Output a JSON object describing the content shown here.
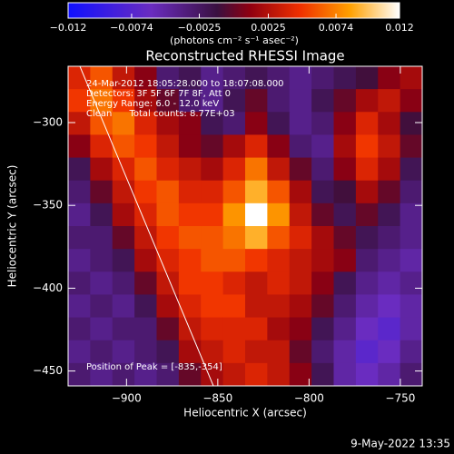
{
  "chart_data": {
    "type": "heatmap",
    "title": "Reconstructed RHESSI Image",
    "xlabel": "Heliocentric X (arcsec)",
    "ylabel": "Heliocentric Y (arcsec)",
    "xlim": [
      -932,
      -738
    ],
    "ylim": [
      -459,
      -266
    ],
    "xticks": [
      {
        "value": -900,
        "label": "−900"
      },
      {
        "value": -850,
        "label": "−850"
      },
      {
        "value": -800,
        "label": "−800"
      },
      {
        "value": -750,
        "label": "−750"
      }
    ],
    "yticks": [
      {
        "value": -300,
        "label": "−300"
      },
      {
        "value": -350,
        "label": "−350"
      },
      {
        "value": -400,
        "label": "−400"
      },
      {
        "value": -450,
        "label": "−450"
      }
    ],
    "clim": [
      -0.012,
      0.012
    ],
    "cticks": [
      {
        "value": -0.012,
        "label": "−0.012"
      },
      {
        "value": -0.0074,
        "label": "−0.0074"
      },
      {
        "value": -0.0025,
        "label": "−0.0025"
      },
      0.0025,
      0.0074,
      0.012
    ],
    "colorbar_label": "(photons cm⁻² s⁻¹ asec⁻²)",
    "colormap": [
      [
        0,
        "#1010ff"
      ],
      [
        0.25,
        "#6a2cc0"
      ],
      [
        0.45,
        "#3a1040"
      ],
      [
        0.55,
        "#900010"
      ],
      [
        0.7,
        "#f03000"
      ],
      [
        0.85,
        "#ffa000"
      ],
      [
        1,
        "#ffffff"
      ]
    ],
    "annotations": [
      "24-Mar-2012 18:05:28.000 to 18:07:08.000",
      "Detectors: 3F 5F 6F 7F 8F, Att 0",
      "Energy Range: 6.0 - 12.0 keV",
      "Clean      Total counts: 8.77E+03"
    ],
    "peak_label": "Position of Peak = [-835,-354]",
    "timestamp": "9-May-2022 13:35",
    "z": [
      [
        0.004,
        0.006,
        0.003,
        0.001,
        -0.003,
        -0.002,
        -0.004,
        -0.003,
        -0.002,
        -0.003,
        -0.004,
        -0.003,
        -0.002,
        -0.001,
        0.001,
        0.002
      ],
      [
        0.005,
        0.007,
        0.005,
        0.002,
        0.0,
        -0.003,
        -0.004,
        -0.002,
        0.0,
        -0.003,
        -0.004,
        -0.002,
        0.0,
        0.002,
        0.003,
        0.001
      ],
      [
        0.003,
        0.006,
        0.007,
        0.004,
        0.002,
        0.001,
        -0.002,
        -0.003,
        0.001,
        -0.002,
        -0.004,
        -0.003,
        0.001,
        0.004,
        0.002,
        -0.001
      ],
      [
        0.001,
        0.004,
        0.006,
        0.005,
        0.003,
        0.001,
        0.0,
        0.002,
        0.004,
        0.001,
        -0.003,
        -0.004,
        0.002,
        0.005,
        0.003,
        0.0
      ],
      [
        -0.002,
        0.002,
        0.004,
        0.006,
        0.004,
        0.003,
        0.002,
        0.004,
        0.007,
        0.003,
        0.0,
        -0.003,
        0.001,
        0.004,
        0.002,
        -0.002
      ],
      [
        -0.003,
        0.0,
        0.003,
        0.005,
        0.006,
        0.004,
        0.004,
        0.006,
        0.009,
        0.006,
        0.002,
        -0.002,
        -0.001,
        0.002,
        0.0,
        -0.003
      ],
      [
        -0.004,
        -0.002,
        0.002,
        0.004,
        0.006,
        0.005,
        0.005,
        0.008,
        0.012,
        0.008,
        0.003,
        0.0,
        -0.002,
        0.0,
        -0.002,
        -0.004
      ],
      [
        -0.003,
        -0.003,
        0.0,
        0.003,
        0.005,
        0.006,
        0.006,
        0.007,
        0.009,
        0.006,
        0.004,
        0.002,
        0.0,
        -0.002,
        -0.003,
        -0.004
      ],
      [
        -0.004,
        -0.003,
        -0.002,
        0.002,
        0.004,
        0.005,
        0.006,
        0.006,
        0.005,
        0.004,
        0.003,
        0.002,
        0.001,
        -0.003,
        -0.004,
        -0.005
      ],
      [
        -0.003,
        -0.004,
        -0.003,
        0.0,
        0.003,
        0.005,
        0.005,
        0.004,
        0.003,
        0.004,
        0.003,
        0.001,
        -0.002,
        -0.004,
        -0.005,
        -0.004
      ],
      [
        -0.004,
        -0.003,
        -0.004,
        -0.002,
        0.002,
        0.004,
        0.005,
        0.005,
        0.003,
        0.003,
        0.002,
        0.0,
        -0.003,
        -0.005,
        -0.006,
        -0.005
      ],
      [
        -0.003,
        -0.004,
        -0.003,
        -0.003,
        0.0,
        0.003,
        0.004,
        0.004,
        0.004,
        0.002,
        0.001,
        -0.002,
        -0.004,
        -0.006,
        -0.007,
        -0.005
      ],
      [
        -0.004,
        -0.003,
        -0.004,
        -0.003,
        -0.002,
        0.002,
        0.003,
        0.004,
        0.003,
        0.003,
        0.0,
        -0.003,
        -0.005,
        -0.007,
        -0.006,
        -0.004
      ],
      [
        -0.003,
        -0.004,
        -0.003,
        -0.004,
        -0.003,
        0.0,
        0.002,
        0.003,
        0.004,
        0.003,
        0.001,
        -0.002,
        -0.005,
        -0.006,
        -0.005,
        -0.003
      ]
    ]
  }
}
